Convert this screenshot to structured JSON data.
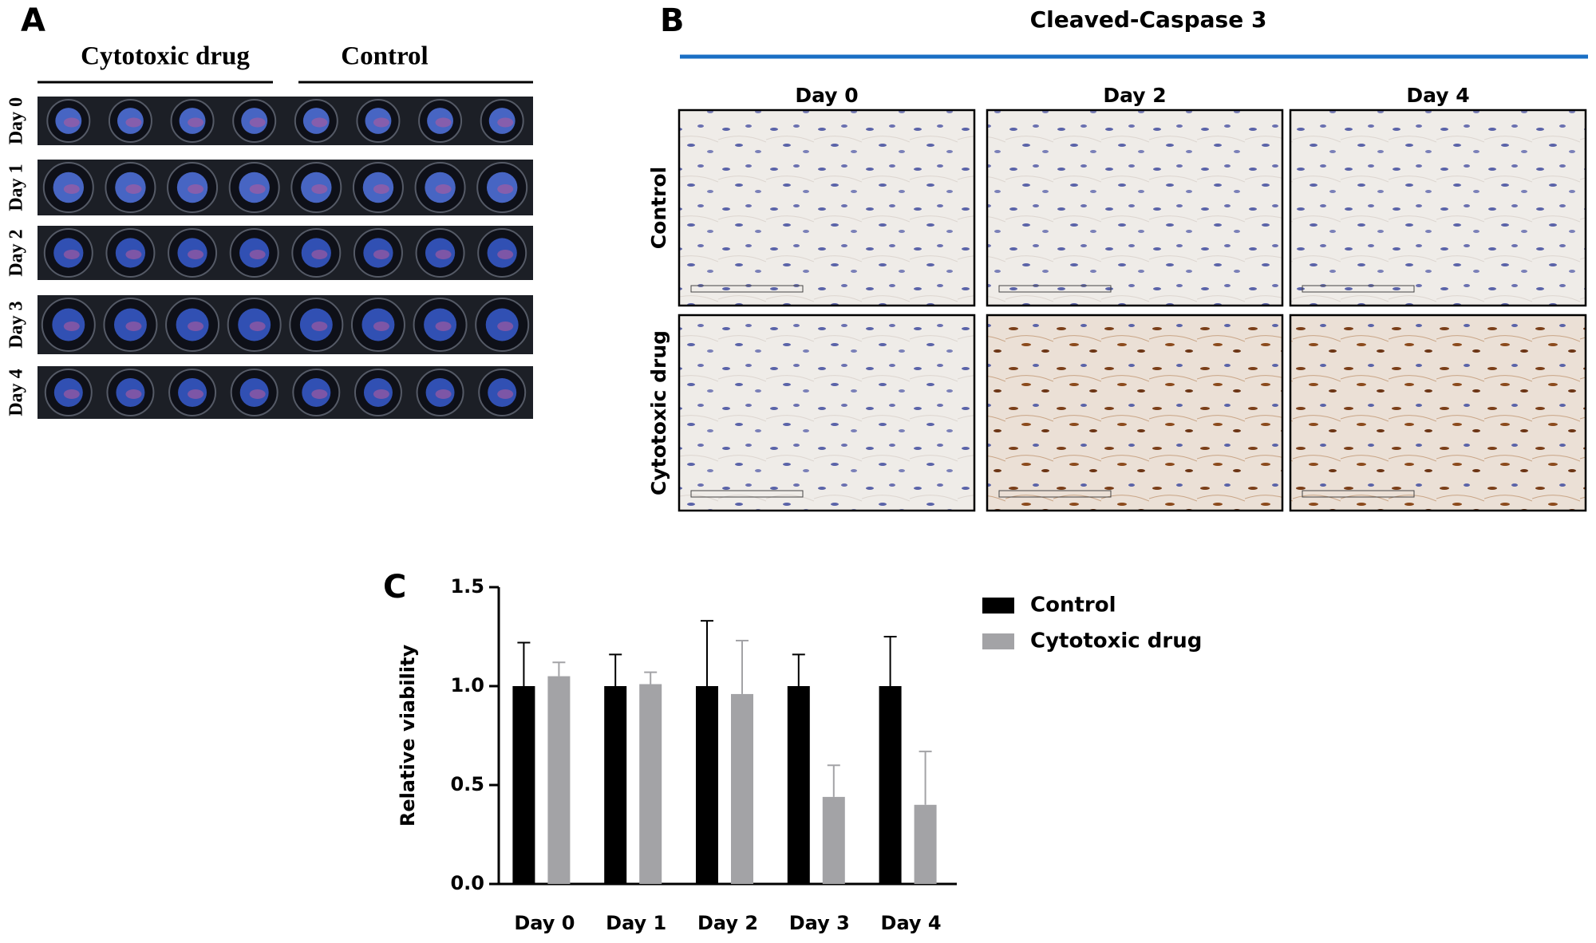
{
  "panel_a": {
    "label": "A",
    "groups": [
      "Cytotoxic drug",
      "Control"
    ],
    "rows": [
      "Day 0",
      "Day 1",
      "Day 2",
      "Day 3",
      "Day 4"
    ]
  },
  "panel_b": {
    "label": "B",
    "title": "Cleaved-Caspase 3",
    "columns": [
      "Day 0",
      "Day 2",
      "Day 4"
    ],
    "rows": [
      "Control",
      "Cytotoxic drug"
    ]
  },
  "chart_data": {
    "type": "bar",
    "panel_label": "C",
    "y_label": "Relative viability",
    "categories": [
      "Day 0",
      "Day 1",
      "Day 2",
      "Day 3",
      "Day 4"
    ],
    "series": [
      {
        "name": "Control",
        "color": "#000000",
        "values": [
          1.0,
          1.0,
          1.0,
          1.0,
          1.0
        ],
        "errors": [
          0.22,
          0.16,
          0.33,
          0.16,
          0.25
        ]
      },
      {
        "name": "Cytotoxic drug",
        "color": "#a3a3a6",
        "values": [
          1.05,
          1.01,
          0.96,
          0.44,
          0.4
        ],
        "errors": [
          0.07,
          0.06,
          0.27,
          0.16,
          0.27
        ]
      }
    ],
    "ylim": [
      0,
      1.5
    ],
    "yticks": [
      {
        "value": 0,
        "label": "0.0"
      },
      0.5,
      {
        "value": 1,
        "label": "1.0"
      },
      1.5
    ]
  }
}
